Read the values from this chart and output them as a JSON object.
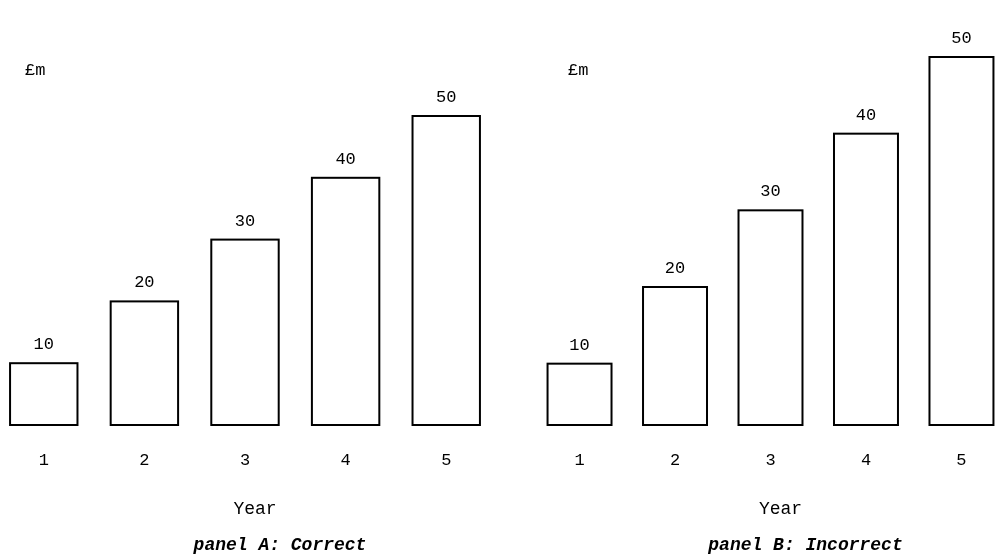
{
  "chart_data": [
    {
      "type": "bar",
      "title": "panel A: Correct",
      "xlabel": "Year",
      "ylabel": "£m",
      "categories": [
        "1",
        "2",
        "3",
        "4",
        "5"
      ],
      "values": [
        10,
        20,
        30,
        40,
        50
      ],
      "color": "#ffffff",
      "ylim": [
        0,
        50
      ],
      "data_labels": true
    },
    {
      "type": "bar",
      "title": "panel B: Incorrect",
      "xlabel": "Year",
      "ylabel": "£m",
      "categories": [
        "1",
        "2",
        "3",
        "4",
        "5"
      ],
      "values": [
        10,
        20,
        30,
        40,
        50
      ],
      "color": "#ffffff",
      "ylim": [
        2,
        50
      ],
      "data_labels": true
    }
  ]
}
